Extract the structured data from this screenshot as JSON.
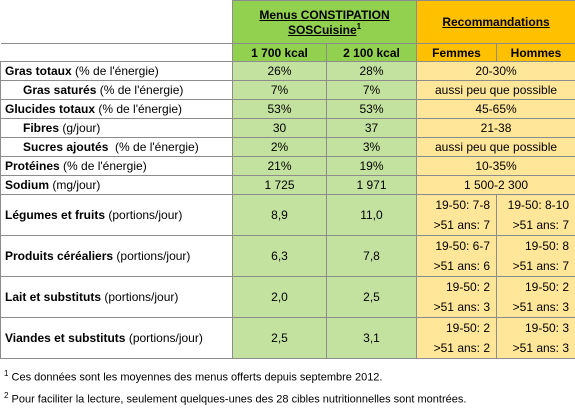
{
  "header": {
    "menus_title": "Menus CONSTIPATION",
    "menus_subtitle": "SOSCuisine",
    "menus_note": "1",
    "col1": "1 700 kcal",
    "col2": "2 100 kcal",
    "reco_title": "Recommandations",
    "femmes": "Femmes",
    "hommes": "Hommes"
  },
  "table": {
    "rows": [
      {
        "label": "Gras totaux",
        "unit": " (% de l'énergie)",
        "v1": "26%",
        "v2": "28%",
        "reco": "20-30%"
      },
      {
        "label": "Gras saturés",
        "unit": " (% de l'énergie)",
        "v1": "7%",
        "v2": "7%",
        "reco": "aussi peu que possible"
      },
      {
        "label": "Glucides totaux",
        "unit": " (% de l'énergie)",
        "v1": "53%",
        "v2": "53%",
        "reco": "45-65%"
      },
      {
        "label": "Fibres",
        "unit": " (g/jour)",
        "v1": "30",
        "v2": "37",
        "reco": "21-38"
      },
      {
        "label": "Sucres ajoutés",
        "unit": "  (% de l'énergie)",
        "v1": "2%",
        "v2": "3%",
        "reco": "aussi peu que possible"
      },
      {
        "label": "Protéines",
        "unit": " (% de l'énergie)",
        "v1": "21%",
        "v2": "19%",
        "reco": "10-35%"
      },
      {
        "label": "Sodium",
        "unit": " (mg/jour)",
        "v1": "1 725",
        "v2": "1 971",
        "reco": "1 500-2 300"
      },
      {
        "label": "Légumes et fruits",
        "unit": " (portions/jour)",
        "v1": "8,9",
        "v2": "11,0",
        "femmes": [
          "19-50: 7-8",
          ">51 ans: 7"
        ],
        "hommes": [
          "19-50: 8-10",
          ">51 ans: 7"
        ]
      },
      {
        "label": "Produits céréaliers",
        "unit": " (portions/jour)",
        "v1": "6,3",
        "v2": "7,8",
        "femmes": [
          "19-50: 6-7",
          ">51 ans: 6"
        ],
        "hommes": [
          "19-50: 8",
          ">51 ans: 7"
        ]
      },
      {
        "label": "Lait et substituts",
        "unit": " (portions/jour)",
        "v1": "2,0",
        "v2": "2,5",
        "femmes": [
          "19-50: 2",
          ">51 ans: 3"
        ],
        "hommes": [
          "19-50: 2",
          ">51 ans: 3"
        ]
      },
      {
        "label": "Viandes et substituts",
        "unit": " (portions/jour)",
        "v1": "2,5",
        "v2": "3,1",
        "femmes": [
          "19-50: 2",
          ">51 ans: 2"
        ],
        "hommes": [
          "19-50: 3",
          ">51 ans: 3"
        ]
      }
    ]
  },
  "footnotes": [
    {
      "mark": "1",
      "text": "Ces données sont les moyennes des menus offerts depuis septembre 2012."
    },
    {
      "mark": "2",
      "text": "Pour faciliter la lecture, seulement quelques-unes des 28 cibles nutritionnelles sont montrées."
    }
  ]
}
